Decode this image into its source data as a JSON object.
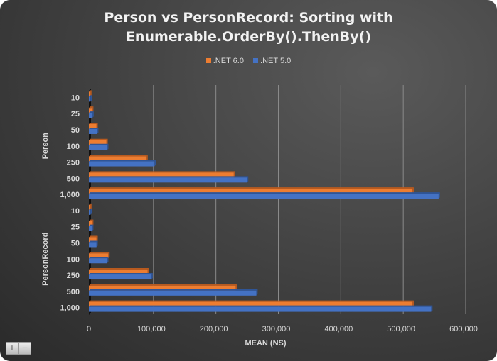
{
  "chart_data": {
    "type": "bar",
    "orientation": "horizontal",
    "title": "Person vs PersonRecord: Sorting with Enumerable.OrderBy().ThenBy()",
    "title_lines": [
      "Person vs PersonRecord: Sorting with",
      "Enumerable.OrderBy().ThenBy()"
    ],
    "xlabel": "MEAN (NS)",
    "ylabel": "",
    "xlim": [
      0,
      600000
    ],
    "x_ticks": [
      "0",
      "100,000",
      "200,000",
      "300,000",
      "400,000",
      "500,000",
      "600,000"
    ],
    "x_tick_values": [
      0,
      100000,
      200000,
      300000,
      400000,
      500000,
      600000
    ],
    "grid": true,
    "legend_position": "top",
    "groups": [
      {
        "name": "Person",
        "categories": [
          "10",
          "25",
          "50",
          "100",
          "250",
          "500",
          "1,000"
        ]
      },
      {
        "name": "PersonRecord",
        "categories": [
          "10",
          "25",
          "50",
          "100",
          "250",
          "500",
          "1,000"
        ]
      }
    ],
    "series": [
      {
        "name": ".NET 6.0",
        "color": "#ED7D31",
        "values": [
          [
            2000,
            5000,
            12000,
            28000,
            92000,
            232000,
            518000
          ],
          [
            2000,
            5000,
            12000,
            31000,
            94000,
            235000,
            518000
          ]
        ]
      },
      {
        "name": ".NET 5.0",
        "color": "#4472C4",
        "values": [
          [
            2500,
            5500,
            13000,
            29000,
            105000,
            253000,
            560000
          ],
          [
            2500,
            5000,
            12000,
            29000,
            100000,
            268000,
            548000
          ]
        ]
      }
    ]
  },
  "controls": {
    "zoom_in": "+",
    "zoom_out": "−"
  }
}
